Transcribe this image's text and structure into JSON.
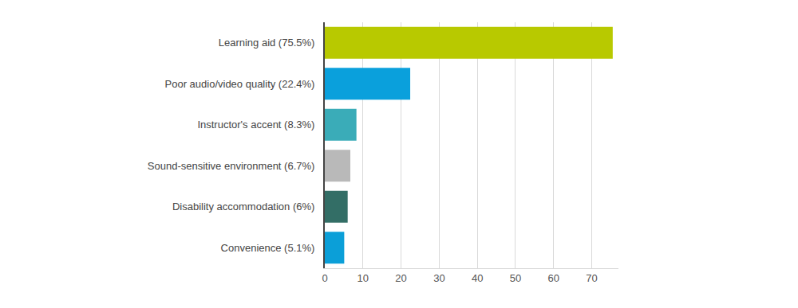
{
  "chart_data": {
    "type": "bar",
    "orientation": "horizontal",
    "categories": [
      "Learning aid (75.5%)",
      "Poor audio/video quality (22.4%)",
      "Instructor's accent (8.3%)",
      "Sound-sensitive environment (6.7%)",
      "Disability accommodation (6%)",
      "Convenience (5.1%)"
    ],
    "values": [
      75.5,
      22.4,
      8.3,
      6.7,
      6,
      5.1
    ],
    "colors": [
      "#b8c900",
      "#0aa0dc",
      "#3aacb8",
      "#b9b9b9",
      "#336e66",
      "#0b9fd8"
    ],
    "xlim": [
      0,
      77
    ],
    "xticks": [
      0,
      10,
      20,
      30,
      40,
      50,
      60,
      70
    ],
    "grid": true
  }
}
